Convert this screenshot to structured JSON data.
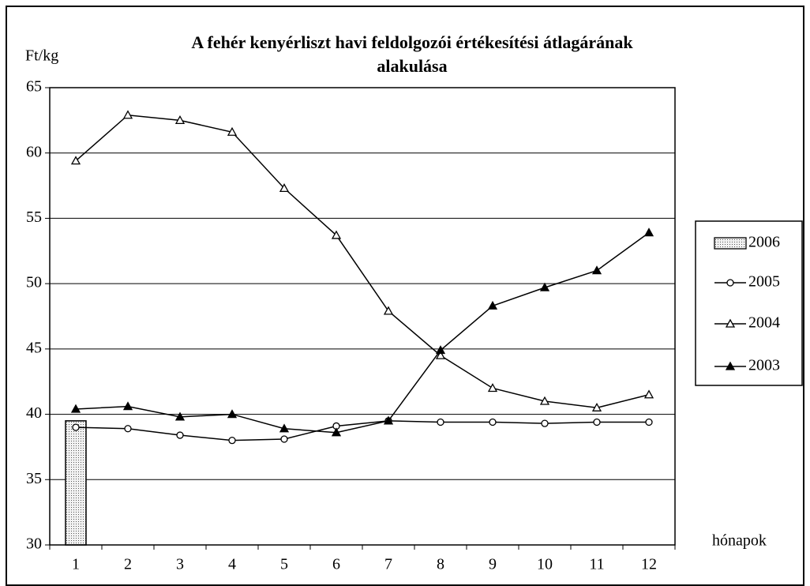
{
  "chart_data": {
    "type": "line",
    "title": [
      "A fehér kenyérliszt havi feldolgozói értékesítési átlagárának",
      "alakulása"
    ],
    "y_label": "Ft/kg",
    "x_label": "hónapok",
    "categories": [
      "1",
      "2",
      "3",
      "4",
      "5",
      "6",
      "7",
      "8",
      "9",
      "10",
      "11",
      "12"
    ],
    "ylim": [
      30,
      65
    ],
    "yticks": [
      30,
      35,
      40,
      45,
      50,
      55,
      60,
      65
    ],
    "grid": true,
    "legend": "right",
    "series": [
      {
        "name": "2006",
        "type": "bar",
        "color": "#d9d9d9",
        "values": [
          39.5,
          null,
          null,
          null,
          null,
          null,
          null,
          null,
          null,
          null,
          null,
          null
        ]
      },
      {
        "name": "2005",
        "type": "line",
        "marker": "circle-open",
        "color": "#000000",
        "values": [
          39.0,
          38.9,
          38.4,
          38.0,
          38.1,
          39.1,
          39.5,
          39.4,
          39.4,
          39.3,
          39.4,
          39.4
        ]
      },
      {
        "name": "2004",
        "type": "line",
        "marker": "triangle-open",
        "color": "#000000",
        "values": [
          59.4,
          62.9,
          62.5,
          61.6,
          57.3,
          53.7,
          47.9,
          44.5,
          42.0,
          41.0,
          40.5,
          41.5
        ]
      },
      {
        "name": "2003",
        "type": "line",
        "marker": "triangle-filled",
        "color": "#000000",
        "values": [
          40.4,
          40.6,
          39.8,
          40.0,
          38.9,
          38.6,
          39.5,
          44.9,
          48.3,
          49.7,
          51.0,
          53.9
        ]
      }
    ]
  }
}
